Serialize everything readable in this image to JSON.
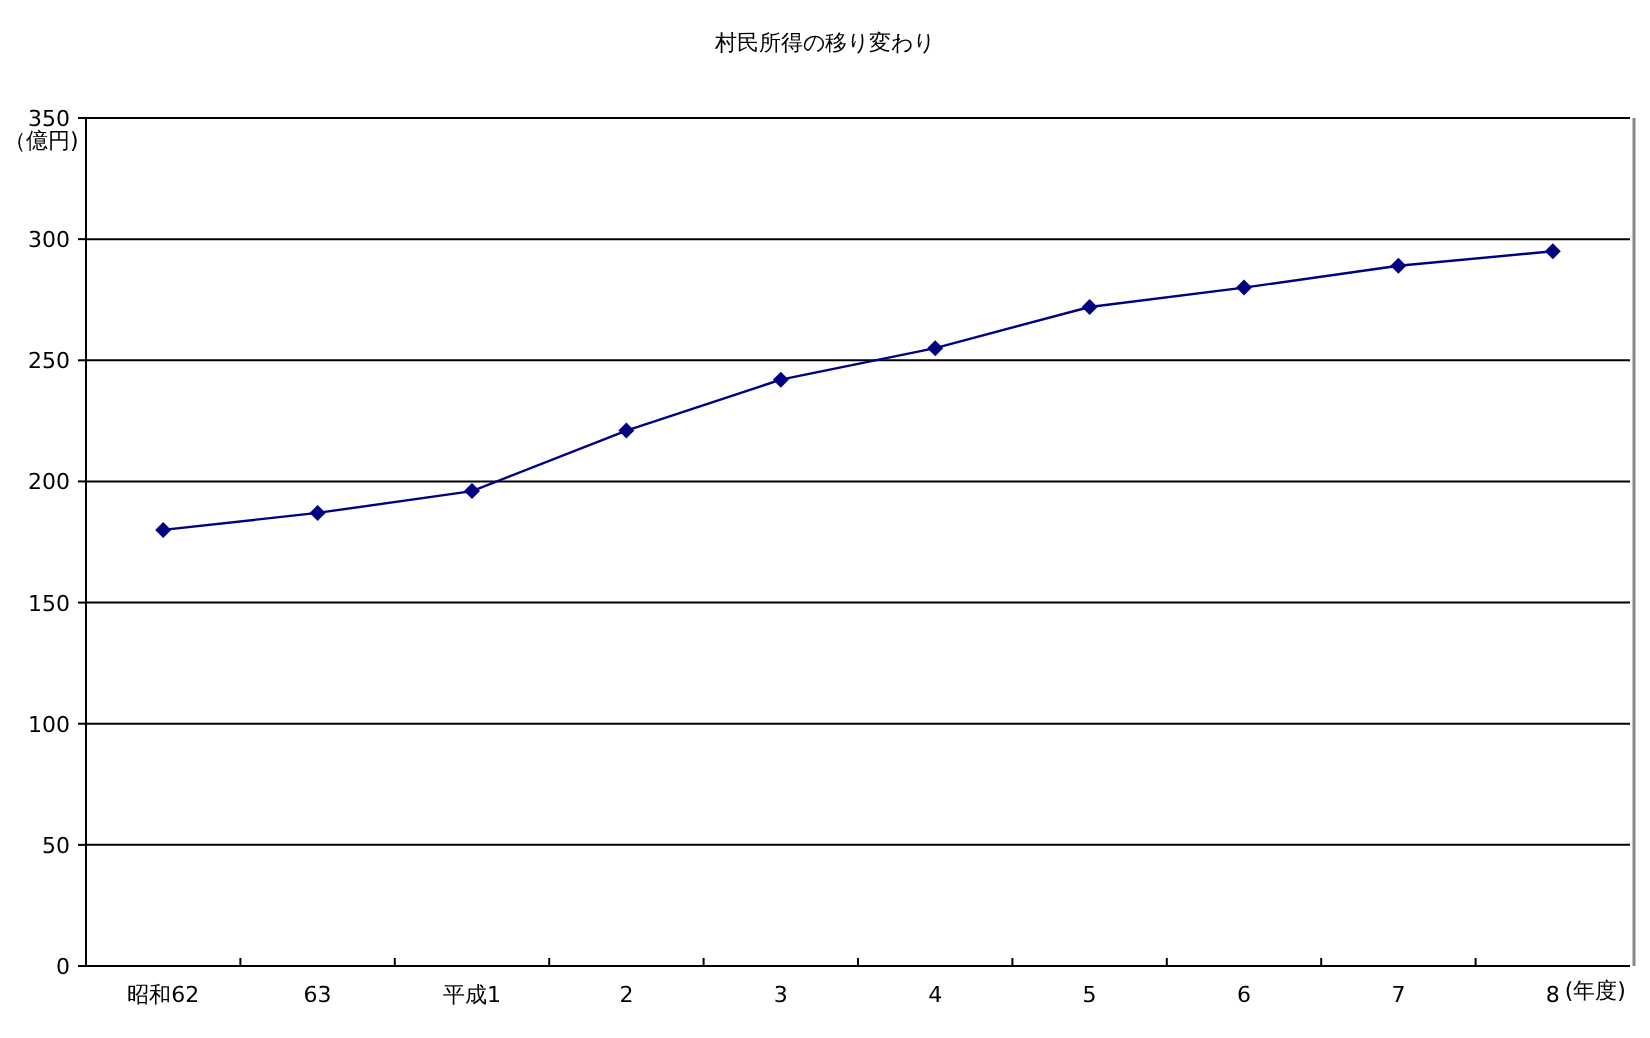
{
  "chart_data": {
    "type": "line",
    "title": "村民所得の移り変わり",
    "ylabel": "（億円)",
    "xlabel": "(年度)",
    "categories": [
      "昭和62",
      "63",
      "平成1",
      "2",
      "3",
      "4",
      "5",
      "6",
      "7",
      "8"
    ],
    "series": [
      {
        "color": "#000080",
        "values": [
          180,
          187,
          196,
          221,
          242,
          255,
          272,
          280,
          289,
          295
        ]
      }
    ],
    "ylim": [
      0,
      350
    ],
    "yticks": [
      0,
      50,
      100,
      150,
      200,
      250,
      300,
      350
    ],
    "grid": "y",
    "marker": "diamond",
    "line_style": "solid"
  }
}
